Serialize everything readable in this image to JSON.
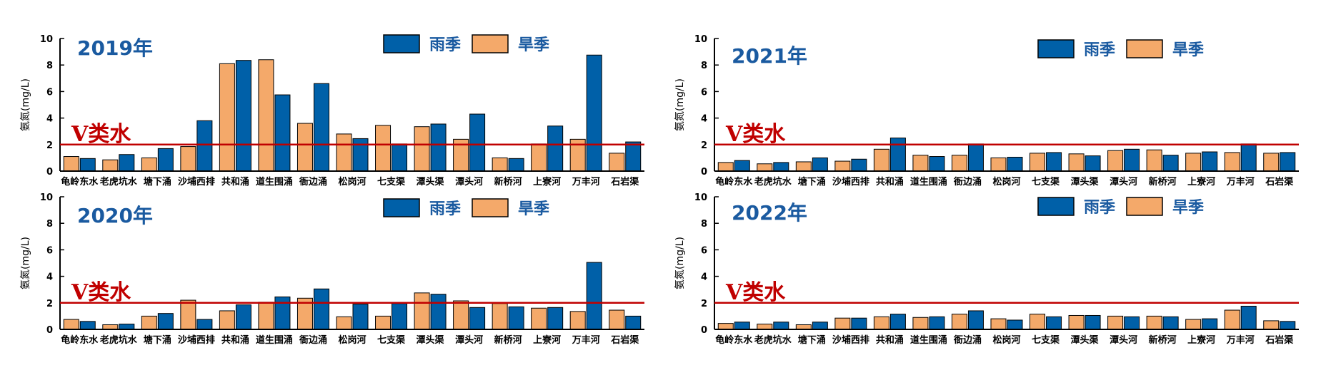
{
  "chart_data": [
    {
      "type": "bar",
      "title": "2019年",
      "ylabel": "氨氮(mg/L)",
      "ylim": [
        0,
        10
      ],
      "yticks": [
        0,
        2,
        4,
        6,
        8,
        10
      ],
      "reference_line": {
        "value": 2,
        "label": "V类水"
      },
      "categories": [
        "龟岭东水",
        "老虎坑水",
        "塘下涌",
        "沙埔西排",
        "共和涌",
        "道生围涌",
        "衙边涌",
        "松岗河",
        "七支渠",
        "潭头渠",
        "潭头河",
        "新桥河",
        "上寮河",
        "万丰河",
        "石岩渠"
      ],
      "series": [
        {
          "name": "旱季",
          "color": "#f4a96a",
          "values": [
            1.1,
            0.85,
            1.0,
            1.85,
            8.1,
            8.4,
            3.6,
            2.8,
            3.45,
            3.35,
            2.4,
            1.0,
            2.05,
            2.4,
            1.35
          ]
        },
        {
          "name": "雨季",
          "color": "#0060a8",
          "values": [
            0.95,
            1.25,
            1.7,
            3.8,
            8.35,
            5.75,
            6.6,
            2.45,
            2.05,
            3.55,
            4.3,
            0.95,
            3.4,
            8.75,
            2.2
          ]
        }
      ]
    },
    {
      "type": "bar",
      "title": "2020年",
      "ylabel": "氨氮(mg/L)",
      "ylim": [
        0,
        10
      ],
      "yticks": [
        0,
        2,
        4,
        6,
        8,
        10
      ],
      "reference_line": {
        "value": 2,
        "label": "V类水"
      },
      "categories": [
        "龟岭东水",
        "老虎坑水",
        "塘下涌",
        "沙埔西排",
        "共和涌",
        "道生围涌",
        "衙边涌",
        "松岗河",
        "七支渠",
        "潭头渠",
        "潭头河",
        "新桥河",
        "上寮河",
        "万丰河",
        "石岩渠"
      ],
      "series": [
        {
          "name": "旱季",
          "color": "#f4a96a",
          "values": [
            0.75,
            0.35,
            1.0,
            2.2,
            1.4,
            2.05,
            2.35,
            0.95,
            1.0,
            2.75,
            2.15,
            1.95,
            1.6,
            1.35,
            1.45
          ]
        },
        {
          "name": "雨季",
          "color": "#0060a8",
          "values": [
            0.6,
            0.4,
            1.2,
            0.75,
            1.85,
            2.45,
            3.05,
            1.9,
            1.95,
            2.65,
            1.65,
            1.7,
            1.65,
            5.05,
            1.0
          ]
        }
      ]
    },
    {
      "type": "bar",
      "title": "2021年",
      "ylabel": "氨氮(mg/L)",
      "ylim": [
        0,
        10
      ],
      "yticks": [
        0,
        2,
        4,
        6,
        8,
        10
      ],
      "reference_line": {
        "value": 2,
        "label": "V类水"
      },
      "categories": [
        "龟岭东水",
        "老虎坑水",
        "塘下涌",
        "沙埔西排",
        "共和涌",
        "道生围涌",
        "衙边涌",
        "松岗河",
        "七支渠",
        "潭头渠",
        "潭头河",
        "新桥河",
        "上寮河",
        "万丰河",
        "石岩渠"
      ],
      "series": [
        {
          "name": "旱季",
          "color": "#f4a96a",
          "values": [
            0.65,
            0.55,
            0.7,
            0.75,
            1.65,
            1.2,
            1.2,
            1.0,
            1.35,
            1.3,
            1.55,
            1.6,
            1.35,
            1.4,
            1.35
          ]
        },
        {
          "name": "雨季",
          "color": "#0060a8",
          "values": [
            0.8,
            0.65,
            1.0,
            0.9,
            2.5,
            1.1,
            2.05,
            1.05,
            1.4,
            1.15,
            1.65,
            1.2,
            1.45,
            2.05,
            1.4
          ]
        }
      ]
    },
    {
      "type": "bar",
      "title": "2022年",
      "ylabel": "氨氮(mg/L)",
      "ylim": [
        0,
        10
      ],
      "yticks": [
        0,
        2,
        4,
        6,
        8,
        10
      ],
      "reference_line": {
        "value": 2,
        "label": "V类水"
      },
      "categories": [
        "龟岭东水",
        "老虎坑水",
        "塘下涌",
        "沙埔西排",
        "共和涌",
        "道生围涌",
        "衙边涌",
        "松岗河",
        "七支渠",
        "潭头渠",
        "潭头河",
        "新桥河",
        "上寮河",
        "万丰河",
        "石岩渠"
      ],
      "series": [
        {
          "name": "旱季",
          "color": "#f4a96a",
          "values": [
            0.45,
            0.4,
            0.35,
            0.85,
            0.95,
            0.9,
            1.15,
            0.8,
            1.15,
            1.05,
            1.0,
            1.0,
            0.75,
            1.45,
            0.65
          ]
        },
        {
          "name": "雨季",
          "color": "#0060a8",
          "values": [
            0.55,
            0.55,
            0.55,
            0.85,
            1.15,
            0.95,
            1.4,
            0.7,
            0.95,
            1.05,
            0.95,
            0.95,
            0.8,
            1.75,
            0.6
          ]
        }
      ]
    }
  ],
  "legend": {
    "rain_label": "雨季",
    "dry_label": "旱季"
  },
  "colors": {
    "rain": "#0060a8",
    "dry": "#f4a96a",
    "reference": "#c00000",
    "title": "#1a5aa0"
  }
}
